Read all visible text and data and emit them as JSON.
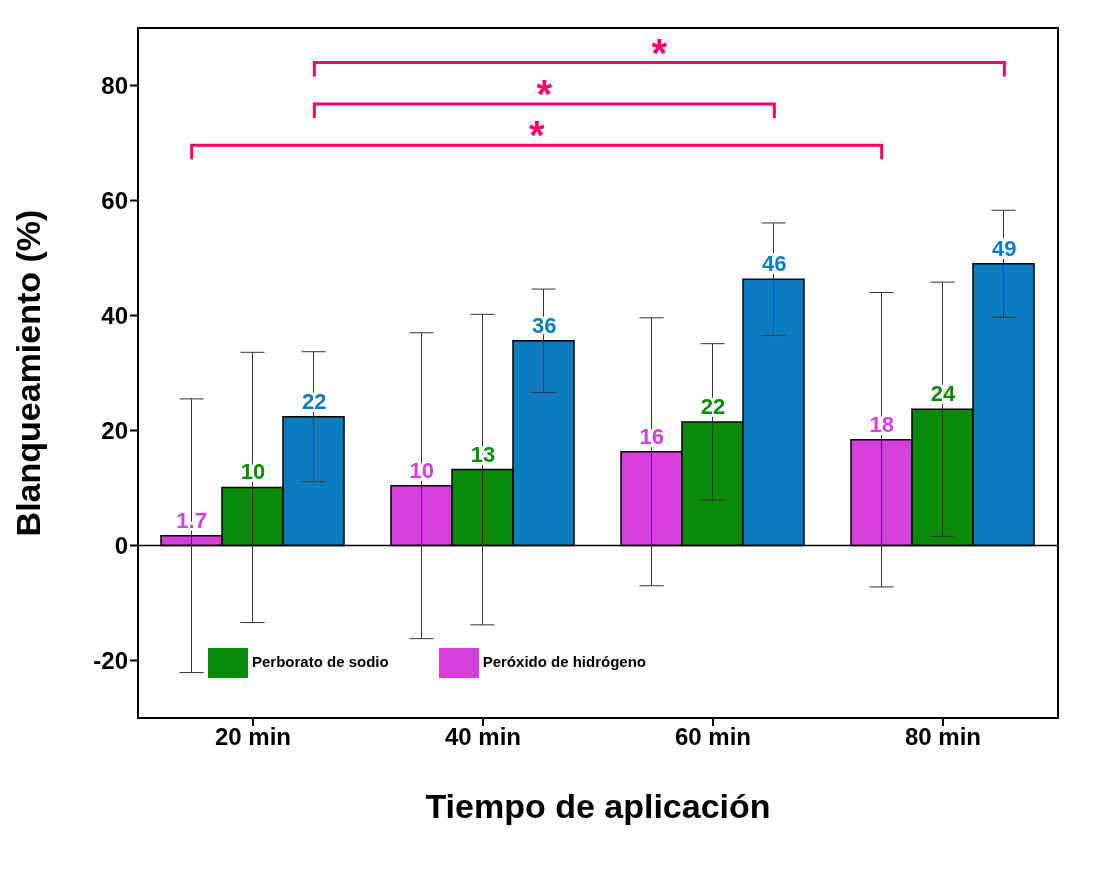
{
  "chart_data": {
    "type": "bar",
    "xlabel": "Tiempo de aplicación",
    "ylabel": "Blanqueamiento   (%)",
    "categories": [
      "20 min",
      "40 min",
      "60 min",
      "80 min"
    ],
    "series": [
      {
        "name": "Peróxido de hidrógeno",
        "color": "#d63fdc",
        "values": [
          1.7,
          10.4,
          16.3,
          18.4
        ],
        "errors": [
          23.8,
          26.6,
          23.3,
          25.6
        ],
        "value_labels": [
          "1.7",
          "10",
          "16",
          "18"
        ]
      },
      {
        "name": "Perborato de sodio",
        "color": "#0a8a0a",
        "values": [
          10.1,
          13.2,
          21.5,
          23.7
        ],
        "errors": [
          23.5,
          27,
          13.6,
          22.1
        ],
        "value_labels": [
          "10",
          "13",
          "22",
          "24"
        ]
      },
      {
        "color": "#0a7dc0",
        "values": [
          22.4,
          35.6,
          46.3,
          49
        ],
        "errors": [
          11.3,
          9,
          9.8,
          9.3
        ],
        "value_labels": [
          "22",
          "36",
          "46",
          "49"
        ]
      }
    ],
    "ylim": [
      -30,
      90
    ],
    "yticks": [
      -20,
      0,
      20,
      40,
      60,
      80
    ],
    "legend": "bottom",
    "ref_lines": [
      {
        "axis": "y",
        "value": 0,
        "color": "#000000"
      }
    ],
    "annotations": [
      "*",
      "*",
      "*"
    ]
  }
}
